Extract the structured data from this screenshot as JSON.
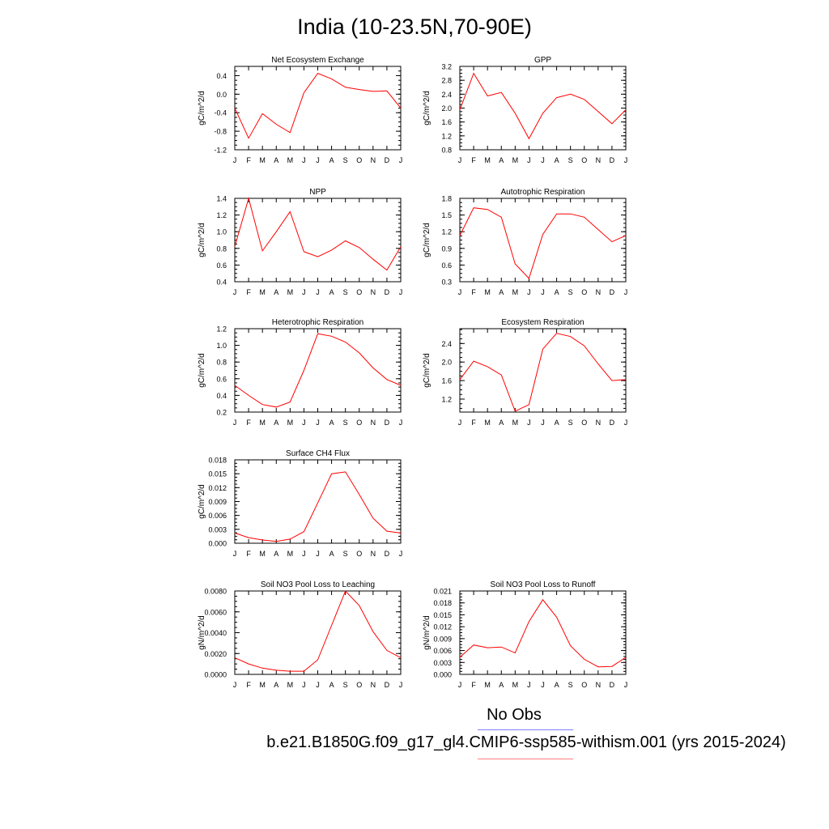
{
  "figure": {
    "title": "India (10-23.5N,70-90E)",
    "obs_label": "No Obs",
    "case_label": "b.e21.B1850G.f09_g17_gl4.CMIP6-ssp585-withism.001 (yrs 2015-2024)",
    "line_color": "#ff0000",
    "obs_legend_color": "#7f7fff",
    "case_legend_color": "#ff7f7f"
  },
  "chart_data": [
    {
      "type": "line",
      "title": "Net Ecosystem Exchange",
      "ylabel": "gC/m^2/d",
      "categories": [
        "J",
        "F",
        "M",
        "A",
        "M",
        "J",
        "J",
        "A",
        "S",
        "O",
        "N",
        "D",
        "J"
      ],
      "values": [
        -0.3,
        -0.95,
        -0.42,
        -0.65,
        -0.83,
        0.03,
        0.45,
        0.33,
        0.15,
        0.1,
        0.06,
        0.07,
        -0.3
      ],
      "ylim": [
        -1.2,
        0.6
      ],
      "yticks": [
        "0.4",
        "0.0",
        "-0.4",
        "-0.8",
        "-1.2"
      ],
      "ytick_values": [
        0.4,
        0.0,
        -0.4,
        -0.8,
        -1.2
      ]
    },
    {
      "type": "line",
      "title": "GPP",
      "ylabel": "gC/m^2/d",
      "categories": [
        "J",
        "F",
        "M",
        "A",
        "M",
        "J",
        "J",
        "A",
        "S",
        "O",
        "N",
        "D",
        "J"
      ],
      "values": [
        1.95,
        3.0,
        2.35,
        2.45,
        1.85,
        1.12,
        1.85,
        2.3,
        2.4,
        2.25,
        1.9,
        1.55,
        1.95
      ],
      "ylim": [
        0.8,
        3.2
      ],
      "yticks": [
        "3.2",
        "2.8",
        "2.4",
        "2.0",
        "1.6",
        "1.2",
        "0.8"
      ],
      "ytick_values": [
        3.2,
        2.8,
        2.4,
        2.0,
        1.6,
        1.2,
        0.8
      ]
    },
    {
      "type": "line",
      "title": "NPP",
      "ylabel": "gC/m^2/d",
      "categories": [
        "J",
        "F",
        "M",
        "A",
        "M",
        "J",
        "J",
        "A",
        "S",
        "O",
        "N",
        "D",
        "J"
      ],
      "values": [
        0.82,
        1.4,
        0.77,
        1.0,
        1.24,
        0.76,
        0.7,
        0.78,
        0.89,
        0.81,
        0.67,
        0.54,
        0.82
      ],
      "ylim": [
        0.4,
        1.4
      ],
      "yticks": [
        "1.4",
        "1.2",
        "1.0",
        "0.8",
        "0.6",
        "0.4"
      ],
      "ytick_values": [
        1.4,
        1.2,
        1.0,
        0.8,
        0.6,
        0.4
      ]
    },
    {
      "type": "line",
      "title": "Autotrophic Respiration",
      "ylabel": "gC/m^2/d",
      "categories": [
        "J",
        "F",
        "M",
        "A",
        "M",
        "J",
        "J",
        "A",
        "S",
        "O",
        "N",
        "D",
        "J"
      ],
      "values": [
        1.13,
        1.63,
        1.6,
        1.46,
        0.62,
        0.36,
        1.15,
        1.52,
        1.52,
        1.46,
        1.24,
        1.02,
        1.13
      ],
      "ylim": [
        0.3,
        1.8
      ],
      "yticks": [
        "1.8",
        "1.5",
        "1.2",
        "0.9",
        "0.6",
        "0.3"
      ],
      "ytick_values": [
        1.8,
        1.5,
        1.2,
        0.9,
        0.6,
        0.3
      ]
    },
    {
      "type": "line",
      "title": "Heterotrophic Respiration",
      "ylabel": "gC/m^2/d",
      "categories": [
        "J",
        "F",
        "M",
        "A",
        "M",
        "J",
        "J",
        "A",
        "S",
        "O",
        "N",
        "D",
        "J"
      ],
      "values": [
        0.52,
        0.4,
        0.29,
        0.26,
        0.32,
        0.7,
        1.14,
        1.11,
        1.04,
        0.91,
        0.73,
        0.59,
        0.52
      ],
      "ylim": [
        0.2,
        1.2
      ],
      "yticks": [
        "1.2",
        "1.0",
        "0.8",
        "0.6",
        "0.4",
        "0.2"
      ],
      "ytick_values": [
        1.2,
        1.0,
        0.8,
        0.6,
        0.4,
        0.2
      ]
    },
    {
      "type": "line",
      "title": "Ecosystem Respiration",
      "ylabel": "gC/m^2/d",
      "categories": [
        "J",
        "F",
        "M",
        "A",
        "M",
        "J",
        "J",
        "A",
        "S",
        "O",
        "N",
        "D",
        "J"
      ],
      "values": [
        1.62,
        2.02,
        1.9,
        1.72,
        0.94,
        1.08,
        2.28,
        2.62,
        2.55,
        2.35,
        1.96,
        1.6,
        1.62
      ],
      "ylim": [
        0.92,
        2.72
      ],
      "yticks": [
        "2.4",
        "2.0",
        "1.6",
        "1.2"
      ],
      "ytick_values": [
        2.4,
        2.0,
        1.6,
        1.2
      ]
    },
    {
      "type": "line",
      "title": "Surface CH4 Flux",
      "ylabel": "gC/m^2/d",
      "categories": [
        "J",
        "F",
        "M",
        "A",
        "M",
        "J",
        "J",
        "A",
        "S",
        "O",
        "N",
        "D",
        "J"
      ],
      "values": [
        0.0022,
        0.0012,
        0.0007,
        0.0004,
        0.0009,
        0.0025,
        0.0087,
        0.015,
        0.0154,
        0.0105,
        0.0054,
        0.0026,
        0.0022
      ],
      "ylim": [
        0,
        0.018
      ],
      "yticks": [
        "0.018",
        "0.015",
        "0.012",
        "0.009",
        "0.006",
        "0.003",
        "0.000"
      ],
      "ytick_values": [
        0.018,
        0.015,
        0.012,
        0.009,
        0.006,
        0.003,
        0.0
      ]
    },
    {
      "type": "line",
      "title": "Soil NO3 Pool Loss to Leaching",
      "ylabel": "gN/m^2/d",
      "categories": [
        "J",
        "F",
        "M",
        "A",
        "M",
        "J",
        "J",
        "A",
        "S",
        "O",
        "N",
        "D",
        "J"
      ],
      "values": [
        0.0016,
        0.001,
        0.0006,
        0.0004,
        0.0003,
        0.0003,
        0.0014,
        0.0047,
        0.008,
        0.0066,
        0.0041,
        0.0023,
        0.0016
      ],
      "ylim": [
        0,
        0.008
      ],
      "yticks": [
        "0.0080",
        "0.0060",
        "0.0040",
        "0.0020",
        "0.0000"
      ],
      "ytick_values": [
        0.008,
        0.006,
        0.004,
        0.002,
        0.0
      ]
    },
    {
      "type": "line",
      "title": "Soil NO3 Pool Loss to Runoff",
      "ylabel": "gN/m^2/d",
      "categories": [
        "J",
        "F",
        "M",
        "A",
        "M",
        "J",
        "J",
        "A",
        "S",
        "O",
        "N",
        "D",
        "J"
      ],
      "values": [
        0.0043,
        0.0074,
        0.0067,
        0.0069,
        0.0054,
        0.0133,
        0.0188,
        0.0144,
        0.0072,
        0.0038,
        0.0019,
        0.002,
        0.0043
      ],
      "ylim": [
        0,
        0.021
      ],
      "yticks": [
        "0.021",
        "0.018",
        "0.015",
        "0.012",
        "0.009",
        "0.006",
        "0.003",
        "0.000"
      ],
      "ytick_values": [
        0.021,
        0.018,
        0.015,
        0.012,
        0.009,
        0.006,
        0.003,
        0.0
      ]
    }
  ]
}
